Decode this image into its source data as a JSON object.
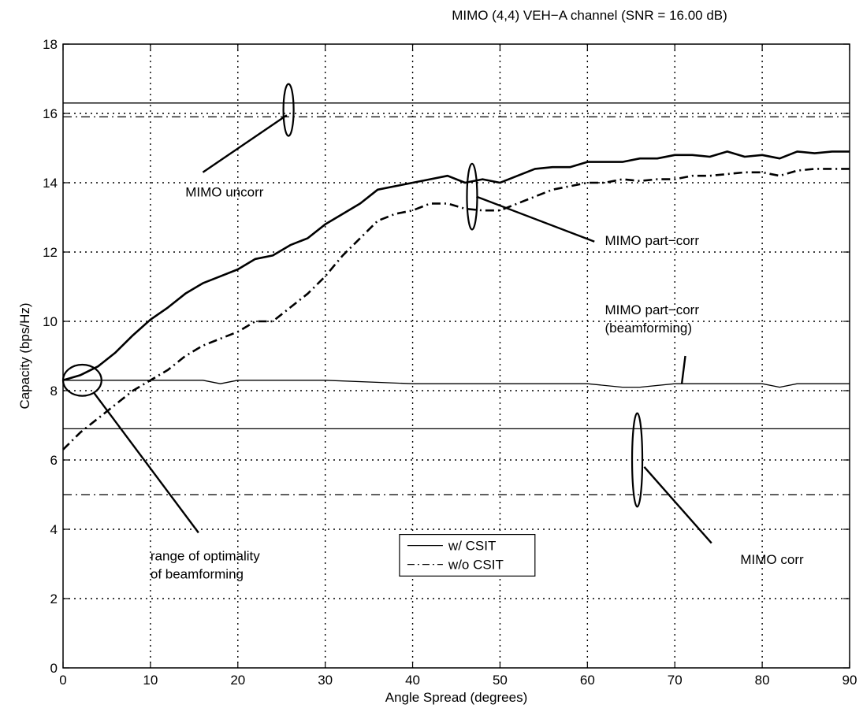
{
  "chart_data": {
    "type": "line",
    "title": "MIMO (4,4) VEH−A channel (SNR = 16.00 dB)",
    "xlabel": "Angle Spread (degrees)",
    "ylabel": "Capacity (bps/Hz)",
    "xlim": [
      0,
      90
    ],
    "ylim": [
      0,
      18
    ],
    "xticks": [
      0,
      10,
      20,
      30,
      40,
      50,
      60,
      70,
      80,
      90
    ],
    "yticks": [
      0,
      2,
      4,
      6,
      8,
      10,
      12,
      14,
      16,
      18
    ],
    "grid": true,
    "legend": {
      "placement": "lower-center",
      "entries": [
        {
          "label": "w/ CSIT",
          "style": "solid"
        },
        {
          "label": "w/o CSIT",
          "style": "dashdot"
        }
      ]
    },
    "series": [
      {
        "group": "MIMO uncorr",
        "csit": true,
        "style": "solid",
        "width": "thin",
        "x": [
          0,
          90
        ],
        "y": [
          16.3,
          16.3
        ]
      },
      {
        "group": "MIMO uncorr",
        "csit": false,
        "style": "dashdot",
        "width": "thin",
        "x": [
          0,
          90
        ],
        "y": [
          15.9,
          15.9
        ]
      },
      {
        "group": "MIMO part-corr",
        "csit": true,
        "style": "solid",
        "width": "thick",
        "x": [
          0,
          2,
          4,
          6,
          8,
          10,
          12,
          14,
          16,
          18,
          20,
          22,
          24,
          26,
          28,
          30,
          32,
          34,
          36,
          38,
          40,
          42,
          44,
          46,
          48,
          50,
          52,
          54,
          56,
          58,
          60,
          62,
          64,
          66,
          68,
          70,
          72,
          74,
          76,
          78,
          80,
          82,
          84,
          86,
          88,
          90
        ],
        "y": [
          8.3,
          8.45,
          8.7,
          9.1,
          9.6,
          10.05,
          10.4,
          10.8,
          11.1,
          11.3,
          11.5,
          11.8,
          11.9,
          12.2,
          12.4,
          12.8,
          13.1,
          13.4,
          13.8,
          13.9,
          14.0,
          14.1,
          14.2,
          14.0,
          14.1,
          14.0,
          14.2,
          14.4,
          14.45,
          14.45,
          14.6,
          14.6,
          14.6,
          14.7,
          14.7,
          14.8,
          14.8,
          14.75,
          14.9,
          14.75,
          14.8,
          14.7,
          14.9,
          14.85,
          14.9,
          14.9
        ]
      },
      {
        "group": "MIMO part-corr",
        "csit": false,
        "style": "dashdot",
        "width": "thick",
        "x": [
          0,
          2,
          4,
          6,
          8,
          10,
          12,
          14,
          16,
          18,
          20,
          22,
          24,
          26,
          28,
          30,
          32,
          34,
          36,
          38,
          40,
          42,
          44,
          46,
          48,
          50,
          52,
          54,
          56,
          58,
          60,
          62,
          64,
          66,
          68,
          70,
          72,
          74,
          76,
          78,
          80,
          82,
          84,
          86,
          88,
          90
        ],
        "y": [
          6.3,
          6.8,
          7.2,
          7.6,
          8.0,
          8.3,
          8.6,
          9.0,
          9.3,
          9.5,
          9.7,
          10.0,
          10.0,
          10.4,
          10.8,
          11.3,
          11.9,
          12.4,
          12.9,
          13.1,
          13.2,
          13.4,
          13.4,
          13.25,
          13.2,
          13.2,
          13.4,
          13.6,
          13.8,
          13.9,
          14.0,
          14.0,
          14.1,
          14.05,
          14.1,
          14.1,
          14.2,
          14.2,
          14.25,
          14.3,
          14.3,
          14.2,
          14.35,
          14.4,
          14.4,
          14.4
        ]
      },
      {
        "group": "MIMO part-corr (beamforming)",
        "csit": true,
        "style": "solid",
        "width": "thin",
        "x": [
          0,
          10,
          16,
          18,
          20,
          30,
          40,
          50,
          60,
          64,
          66,
          70,
          80,
          82,
          84,
          90
        ],
        "y": [
          8.3,
          8.3,
          8.3,
          8.2,
          8.3,
          8.3,
          8.2,
          8.2,
          8.2,
          8.1,
          8.1,
          8.2,
          8.2,
          8.1,
          8.2,
          8.2
        ]
      },
      {
        "group": "MIMO corr",
        "csit": true,
        "style": "solid",
        "width": "thin",
        "x": [
          0,
          90
        ],
        "y": [
          6.9,
          6.9
        ]
      },
      {
        "group": "MIMO corr",
        "csit": false,
        "style": "dashdot",
        "width": "thin",
        "x": [
          0,
          90
        ],
        "y": [
          5.0,
          5.0
        ]
      }
    ],
    "annotations": [
      {
        "lines": [
          "MIMO uncorr"
        ],
        "text_at": [
          14,
          13.6
        ],
        "ellipse_at": [
          25.8,
          16.1
        ],
        "ellipse_ry": 0.75,
        "pointer_from": [
          16,
          14.3
        ],
        "pointer_to": [
          25.6,
          15.95
        ]
      },
      {
        "lines": [
          "MIMO part−corr"
        ],
        "text_at": [
          62,
          12.2
        ],
        "ellipse_at": [
          46.8,
          13.6
        ],
        "ellipse_ry": 0.95,
        "pointer_from": [
          60.8,
          12.3
        ],
        "pointer_to": [
          47.3,
          13.6
        ]
      },
      {
        "lines": [
          "MIMO part−corr",
          "(beamforming)"
        ],
        "text_at": [
          62,
          10.2
        ],
        "pointer_from": [
          71.2,
          9.0
        ],
        "pointer_to": [
          70.8,
          8.2
        ]
      },
      {
        "lines": [
          "MIMO corr"
        ],
        "text_at": [
          77.5,
          3.0
        ],
        "ellipse_at": [
          65.7,
          6.0
        ],
        "ellipse_ry": 1.35,
        "pointer_from": [
          74.2,
          3.6
        ],
        "pointer_to": [
          66.5,
          5.8
        ]
      },
      {
        "lines": [
          "range of optimality",
          "of beamforming"
        ],
        "text_at": [
          10,
          3.1
        ],
        "ellipse_at": [
          2.2,
          8.3
        ],
        "ellipse_ry": 0.45,
        "ellipse_rx_data": 2.2,
        "pointer_from": [
          15.5,
          3.9
        ],
        "pointer_to": [
          3.5,
          7.95
        ]
      }
    ]
  }
}
